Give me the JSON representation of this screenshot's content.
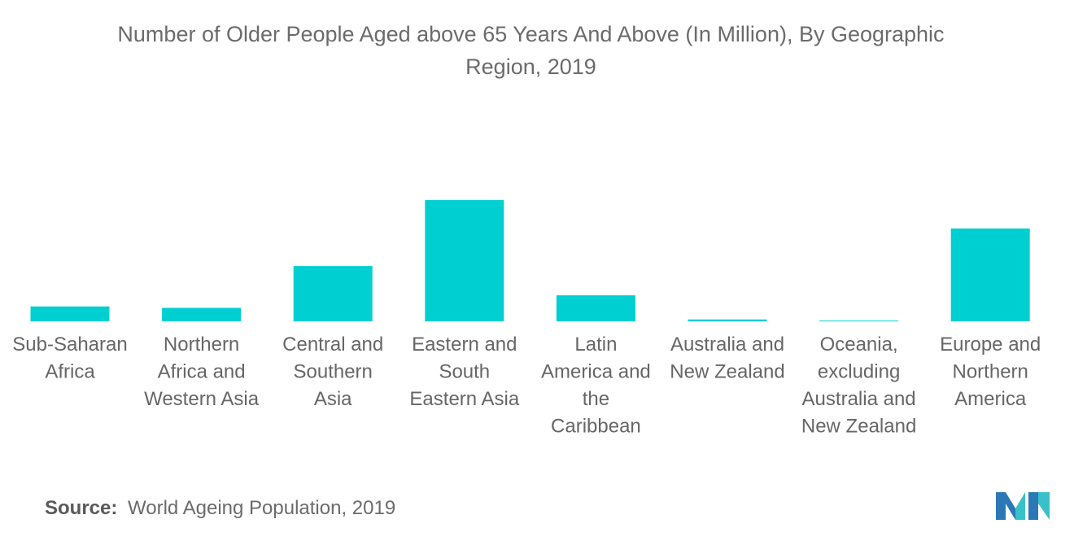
{
  "chart_data": {
    "type": "bar",
    "title_lines": [
      "Number of Older People Aged above 65 Years And Above (In Million), By Geographic",
      "Region, 2019"
    ],
    "categories": [
      [
        "Sub-Saharan",
        "Africa"
      ],
      [
        "Northern",
        "Africa and",
        "Western Asia"
      ],
      [
        "Central and",
        "Southern",
        "Asia"
      ],
      [
        "Eastern and",
        "South",
        "Eastern Asia"
      ],
      [
        "Latin",
        "America and",
        "the",
        "Caribbean"
      ],
      [
        "Australia and",
        "New Zealand"
      ],
      [
        "Oceania,",
        "excluding",
        "Australia and",
        "New Zealand"
      ],
      [
        "Europe and",
        "Northern",
        "America"
      ]
    ],
    "values": [
      32,
      29,
      119,
      261,
      56,
      4,
      1,
      200
    ],
    "ylim": [
      0,
      261
    ],
    "grid": false,
    "legend": "none",
    "bar_color": "#00cfd1"
  },
  "source": {
    "label": "Source:",
    "text": "World Ageing Population, 2019"
  },
  "logo": {
    "icon": "mordor-intelligence-logo-icon",
    "colors": [
      "#2a78b5",
      "#38c1c8"
    ]
  }
}
